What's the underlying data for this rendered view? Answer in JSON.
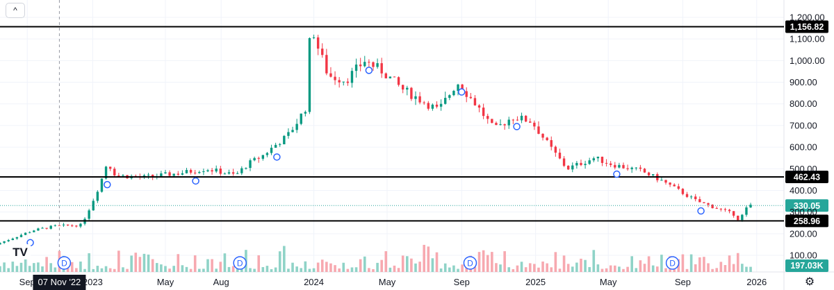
{
  "toolbar": {
    "collapse_icon": "chevron-up-icon",
    "collapse_glyph": "^",
    "settings_icon": "gear-icon"
  },
  "logo_text": "TV",
  "crosshair_date_label": "07 Nov '22",
  "colors": {
    "up": "#089981",
    "down": "#f23645",
    "vol_up": "#8fd3c7",
    "vol_down": "#f7a9b0",
    "level_line": "#000000",
    "last_price": "#26a69a",
    "volume_tag": "#26a69a",
    "marker": "#2962ff",
    "grid": "#f0f3fa",
    "axis_text": "#131722"
  },
  "chart_data": {
    "type": "candlestick",
    "y_axis": {
      "ylim": [
        80,
        1240
      ],
      "ticks": [
        100,
        200,
        300,
        400,
        500,
        600,
        700,
        800,
        900,
        1000,
        1100,
        1200
      ],
      "tick_labels": [
        "100.00",
        "200.00",
        "300.00",
        "400.00",
        "500.00",
        "600.00",
        "700.00",
        "800.00",
        "900.00",
        "1,000.00",
        "1,100.00",
        "1,200.00"
      ]
    },
    "x_axis": {
      "xlim": [
        "2022-08-01",
        "2026-02-15"
      ],
      "labels": [
        {
          "date": "2022-09-15",
          "text": "Sep"
        },
        {
          "date": "2023-01-01",
          "text": "2023"
        },
        {
          "date": "2023-05-01",
          "text": "May"
        },
        {
          "date": "2023-08-01",
          "text": "Aug"
        },
        {
          "date": "2024-01-01",
          "text": "2024"
        },
        {
          "date": "2024-05-01",
          "text": "May"
        },
        {
          "date": "2024-09-01",
          "text": "Sep"
        },
        {
          "date": "2025-01-01",
          "text": "2025"
        },
        {
          "date": "2025-05-01",
          "text": "May"
        },
        {
          "date": "2025-09-01",
          "text": "Sep"
        },
        {
          "date": "2026-01-01",
          "text": "2026"
        }
      ]
    },
    "price_path": [
      [
        "2022-08-01",
        150
      ],
      [
        "2022-10-01",
        215
      ],
      [
        "2022-11-07",
        235
      ],
      [
        "2022-12-20",
        240
      ],
      [
        "2023-01-05",
        330
      ],
      [
        "2023-01-20",
        430
      ],
      [
        "2023-02-01",
        530
      ],
      [
        "2023-02-15",
        470
      ],
      [
        "2023-04-01",
        460
      ],
      [
        "2023-06-01",
        480
      ],
      [
        "2023-07-15",
        500
      ],
      [
        "2023-09-01",
        470
      ],
      [
        "2023-09-20",
        520
      ],
      [
        "2023-10-15",
        560
      ],
      [
        "2023-11-10",
        620
      ],
      [
        "2023-11-25",
        650
      ],
      [
        "2023-12-10",
        710
      ],
      [
        "2023-12-25",
        780
      ],
      [
        "2024-01-01",
        1080
      ],
      [
        "2024-01-05",
        1156
      ],
      [
        "2024-01-15",
        1060
      ],
      [
        "2024-02-01",
        930
      ],
      [
        "2024-03-01",
        910
      ],
      [
        "2024-04-01",
        1000
      ],
      [
        "2024-05-01",
        950
      ],
      [
        "2024-06-01",
        870
      ],
      [
        "2024-07-01",
        820
      ],
      [
        "2024-08-01",
        770
      ],
      [
        "2024-09-01",
        900
      ],
      [
        "2024-10-01",
        800
      ],
      [
        "2024-11-01",
        680
      ],
      [
        "2024-12-01",
        740
      ],
      [
        "2025-01-01",
        720
      ],
      [
        "2025-02-01",
        600
      ],
      [
        "2025-03-01",
        500
      ],
      [
        "2025-04-15",
        550
      ],
      [
        "2025-05-15",
        520
      ],
      [
        "2025-07-01",
        490
      ],
      [
        "2025-08-01",
        450
      ],
      [
        "2025-09-01",
        400
      ],
      [
        "2025-10-01",
        350
      ],
      [
        "2025-11-01",
        320
      ],
      [
        "2025-12-01",
        290
      ],
      [
        "2025-12-10",
        262
      ],
      [
        "2025-12-25",
        330
      ]
    ],
    "levels": [
      {
        "name": "resistance-top",
        "value": 1156.82,
        "label": "1,156.82"
      },
      {
        "name": "resistance-mid",
        "value": 462.43,
        "label": "462.43"
      },
      {
        "name": "support-low",
        "value": 258.96,
        "label": "258.96"
      }
    ],
    "last_price": {
      "value": 330.05,
      "label": "330.05"
    },
    "volume_label": "197.03K",
    "split_markers": [
      {
        "date": "2022-09-20"
      },
      {
        "date": "2023-01-25"
      },
      {
        "date": "2023-06-20"
      },
      {
        "date": "2023-11-01"
      },
      {
        "date": "2024-04-01"
      },
      {
        "date": "2024-09-01"
      },
      {
        "date": "2024-12-01"
      },
      {
        "date": "2025-05-15"
      },
      {
        "date": "2025-10-01"
      }
    ],
    "dividend_markers": [
      {
        "date": "2022-11-15",
        "label": "D"
      },
      {
        "date": "2023-09-01",
        "label": "D"
      },
      {
        "date": "2024-09-15",
        "label": "D"
      },
      {
        "date": "2025-08-15",
        "label": "D"
      }
    ],
    "crosshair_date": "2022-11-07"
  }
}
